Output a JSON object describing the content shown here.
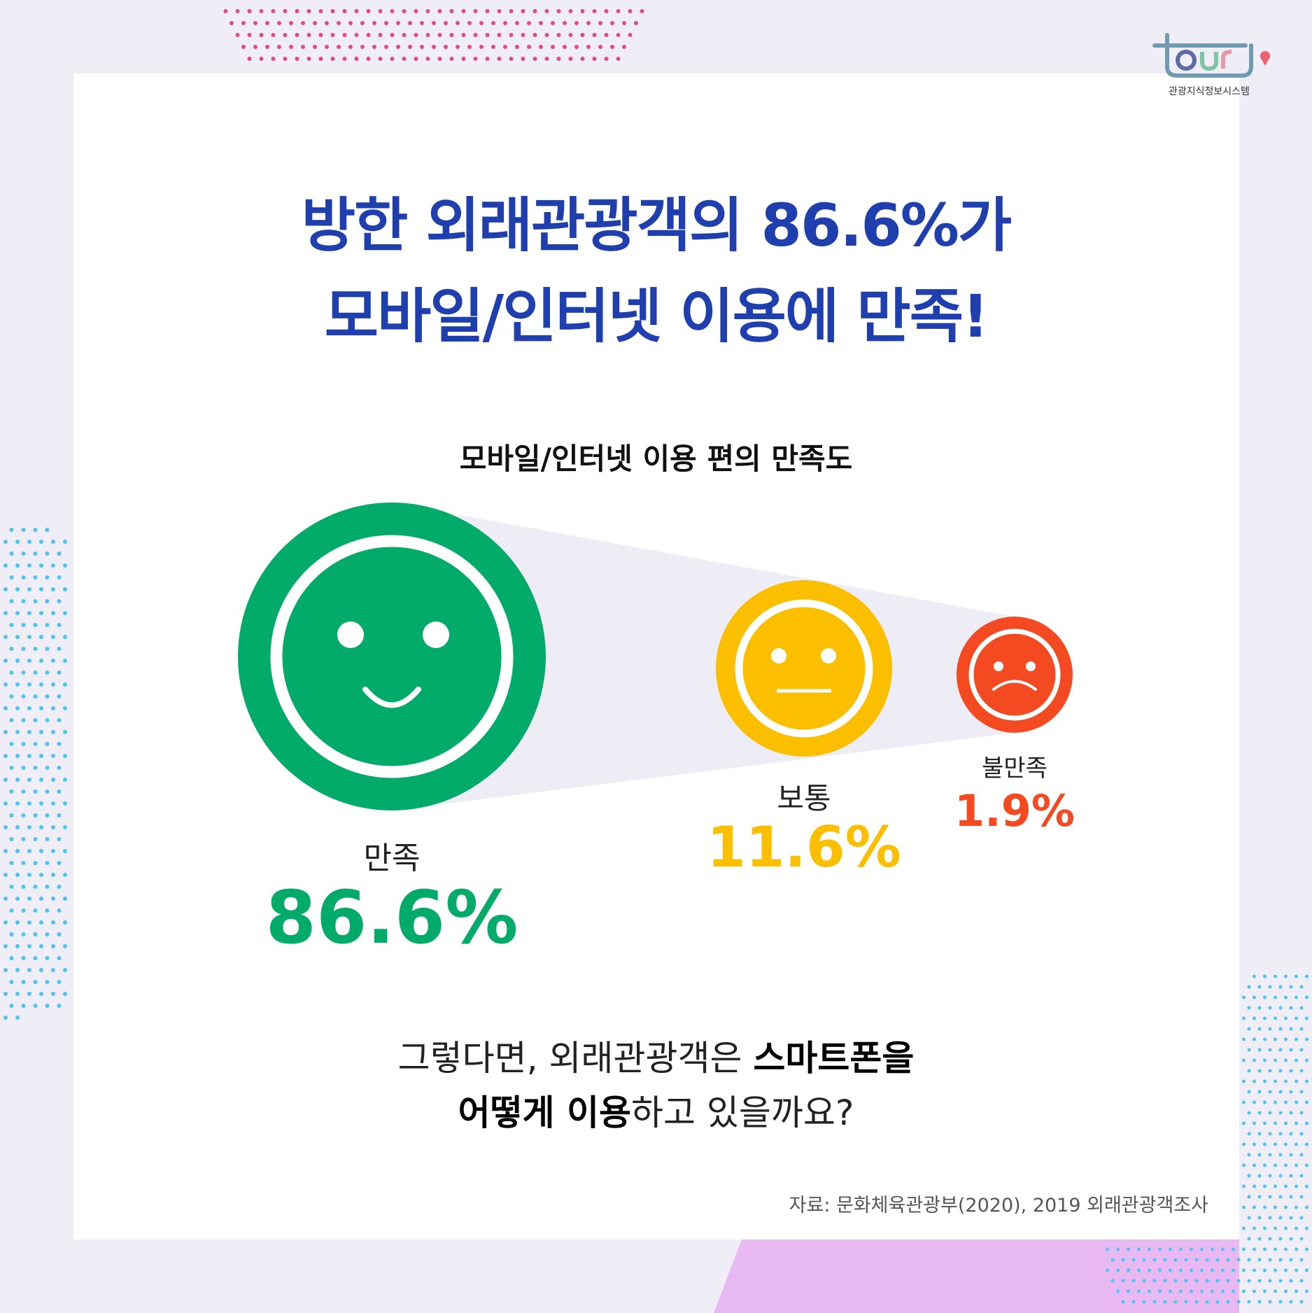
{
  "logo": {
    "text": "tour9",
    "caption": "관광지식정보시스템"
  },
  "title": {
    "line1": "방한 외래관광객의 86.6%가",
    "line2": "모바일/인터넷 이용에 만족!"
  },
  "chart_data": {
    "type": "bubble",
    "title": "모바일/인터넷 이용 편의 만족도",
    "categories": [
      "만족",
      "보통",
      "불만족"
    ],
    "values": [
      86.6,
      11.6,
      1.9
    ],
    "value_labels": [
      "86.6%",
      "11.6%",
      "1.9%"
    ],
    "colors": [
      "#02ab69",
      "#fbbf00",
      "#f34a22"
    ],
    "icons": [
      "smile-face-icon",
      "neutral-face-icon",
      "sad-face-icon"
    ]
  },
  "question": {
    "line1_normal": "그렇다면, 외래관광객은 ",
    "line1_bold": "스마트폰을",
    "line2_bold": "어떻게 이용",
    "line2_normal": "하고 있을까요?"
  },
  "source": "자료: 문화체육관광부(2020), 2019 외래관광객조사"
}
